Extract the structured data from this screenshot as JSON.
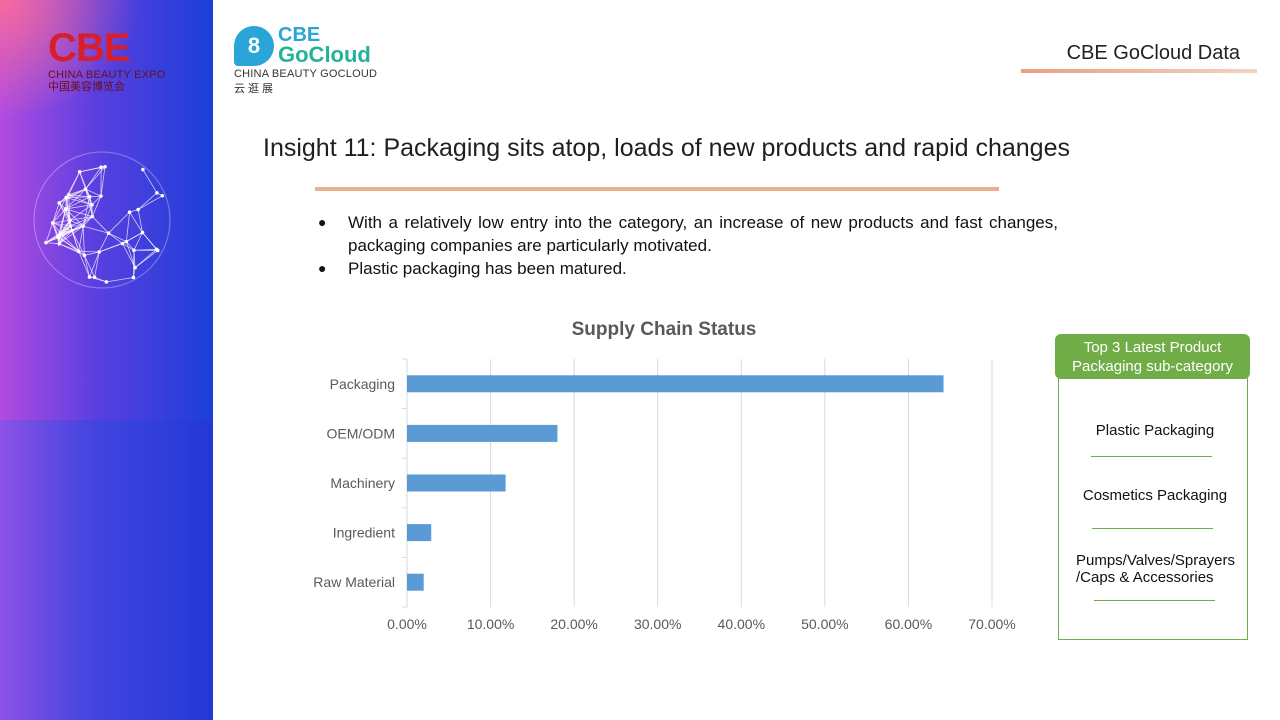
{
  "brand": {
    "cbe_mark": "CBE",
    "cbe_sub": "CHINA BEAUTY EXPO",
    "cbe_cn": "中国美容博览会",
    "gocloud_line1": "CBE",
    "gocloud_line2": "GoCloud",
    "gocloud_sub": "CHINA BEAUTY GOCLOUD",
    "gocloud_cn": "云逛展"
  },
  "header": {
    "right_title": "CBE GoCloud Data"
  },
  "slide": {
    "title": "Insight 11: Packaging sits atop, loads of new products and rapid changes",
    "bullets": [
      "With a relatively low entry into the category, an increase of new products and fast changes, packaging companies are particularly motivated.",
      "Plastic packaging has been matured."
    ],
    "bullet_symbol": "●"
  },
  "chart_data": {
    "type": "bar",
    "orientation": "horizontal",
    "title": "Supply Chain Status",
    "categories": [
      "Packaging",
      "OEM/ODM",
      "Machinery",
      "Ingredient",
      "Raw Material"
    ],
    "values": [
      64.2,
      18.0,
      11.8,
      2.9,
      2.0
    ],
    "xlim": [
      0,
      70
    ],
    "x_ticks": [
      "0.00%",
      "10.00%",
      "20.00%",
      "30.00%",
      "40.00%",
      "50.00%",
      "60.00%",
      "70.00%"
    ],
    "xlabel": "",
    "ylabel": "",
    "grid": true,
    "bar_color": "#5b9bd5"
  },
  "side_panel": {
    "header": "Top 3 Latest Product Packaging sub-category",
    "items": [
      "Plastic Packaging",
      "Cosmetics Packaging",
      "Pumps/Valves/Sprayers /Caps & Accessories"
    ],
    "accent_color": "#70ad47"
  }
}
